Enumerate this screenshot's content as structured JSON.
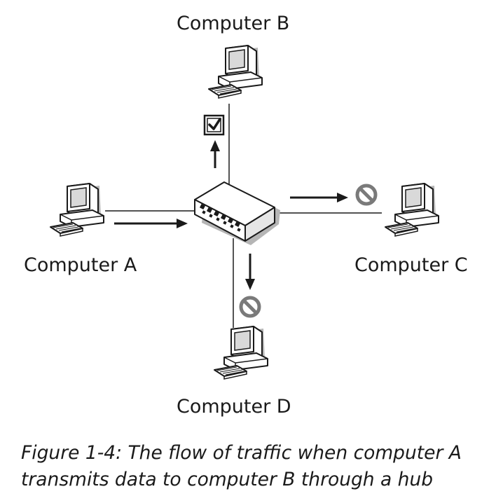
{
  "nodes": {
    "computer_a": {
      "label": "Computer A",
      "icon": "computer-icon"
    },
    "computer_b": {
      "label": "Computer B",
      "icon": "computer-icon",
      "status_icon": "checkbox-checked-icon"
    },
    "computer_c": {
      "label": "Computer C",
      "icon": "computer-icon",
      "status_icon": "prohibited-icon"
    },
    "computer_d": {
      "label": "Computer D",
      "icon": "computer-icon",
      "status_icon": "prohibited-icon"
    },
    "hub": {
      "icon": "hub-icon"
    }
  },
  "caption": {
    "line1": "Figure 1-4: The flow of traffic when computer A",
    "line2": "transmits data to computer B through a hub"
  },
  "colors": {
    "stroke": "#1a1a1a",
    "device_fill": "#ffffff",
    "shadow": "#b5b5b5",
    "screen": "#d9d9d9",
    "prohibited": "#7a7a7a"
  }
}
